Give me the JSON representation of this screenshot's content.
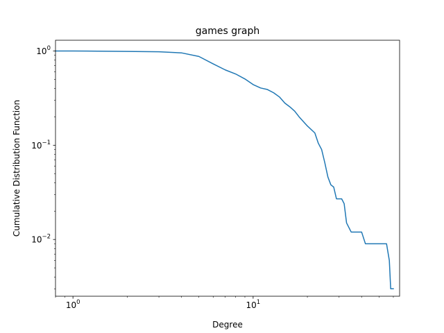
{
  "chart_data": {
    "type": "line",
    "title": "games graph",
    "xlabel": "Degree",
    "ylabel": "Cumulative Distribution Function",
    "x_scale": "log",
    "y_scale": "log",
    "xlim": [
      0.8,
      65
    ],
    "ylim": [
      0.0025,
      1.3
    ],
    "grid": false,
    "legend": "none",
    "x_ticks": [
      {
        "value": 1,
        "base": "10",
        "exp": "0"
      },
      {
        "value": 10,
        "base": "10",
        "exp": "1"
      }
    ],
    "y_ticks": [
      {
        "value": 0.01,
        "base": "10",
        "exp": "−2"
      },
      {
        "value": 0.1,
        "base": "10",
        "exp": "−1"
      },
      {
        "value": 1,
        "base": "10",
        "exp": "0"
      }
    ],
    "series": [
      {
        "color": "#1f77b4",
        "x": [
          0.8,
          1,
          2,
          3,
          4,
          5,
          6,
          7,
          8,
          9,
          10,
          11,
          12,
          13,
          14,
          15,
          16,
          17,
          18,
          20,
          22,
          23,
          24,
          25,
          26,
          27,
          28,
          29,
          30,
          31,
          32,
          33,
          35,
          37,
          40,
          42,
          45,
          48,
          50,
          52,
          55,
          57,
          58,
          60
        ],
        "y": [
          1.0,
          1.0,
          0.99,
          0.98,
          0.955,
          0.875,
          0.73,
          0.63,
          0.57,
          0.505,
          0.44,
          0.405,
          0.39,
          0.36,
          0.325,
          0.28,
          0.255,
          0.23,
          0.2,
          0.16,
          0.135,
          0.105,
          0.09,
          0.065,
          0.046,
          0.038,
          0.036,
          0.027,
          0.027,
          0.027,
          0.024,
          0.015,
          0.012,
          0.012,
          0.012,
          0.009,
          0.009,
          0.009,
          0.009,
          0.009,
          0.009,
          0.006,
          0.003,
          0.003
        ]
      }
    ]
  }
}
